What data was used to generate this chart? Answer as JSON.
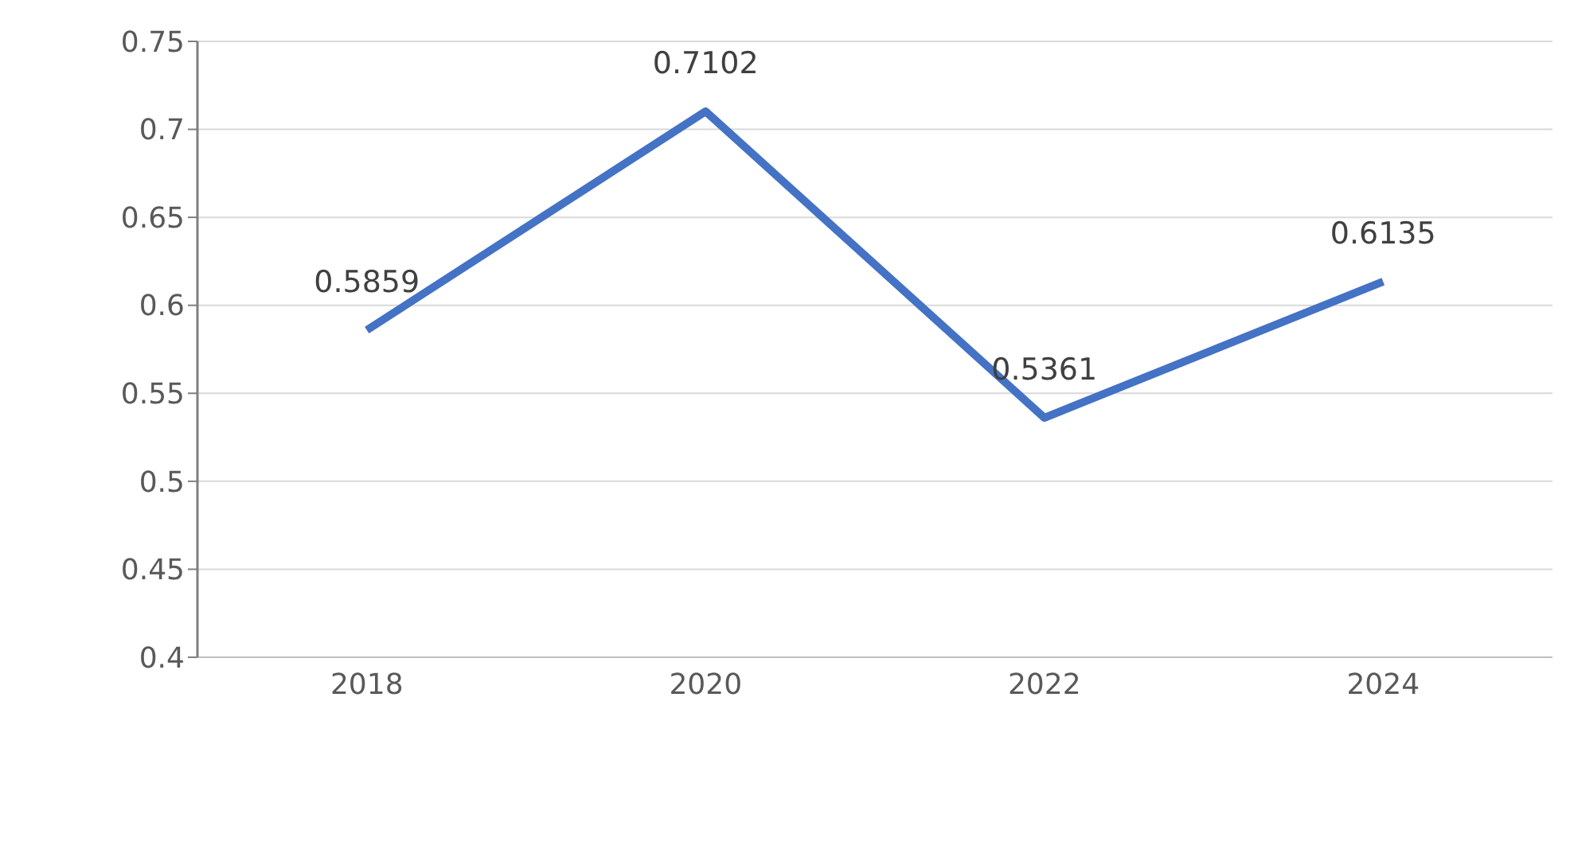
{
  "chart_data": {
    "type": "line",
    "categories": [
      "2018",
      "2020",
      "2022",
      "2024"
    ],
    "series": [
      {
        "color": "#4472c4",
        "values": [
          0.5859,
          0.7102,
          0.5361,
          0.6135
        ]
      }
    ],
    "ylim": [
      0.4,
      0.75
    ],
    "yticks": [
      0.4,
      0.45,
      0.5,
      0.55,
      0.6,
      0.65,
      0.7,
      0.75
    ],
    "grid": "y",
    "data_labels": true,
    "marker": "none",
    "line_style": "solid"
  }
}
